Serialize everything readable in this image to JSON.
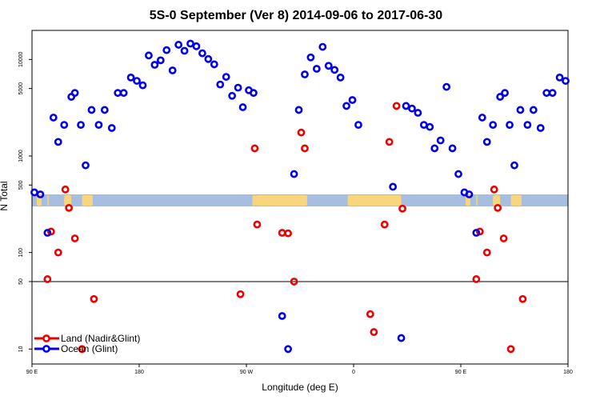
{
  "chart_data": {
    "type": "scatter",
    "title": "5S-0 September (Ver 8)   2014-09-06 to 2017-06-30",
    "xlabel": "Longitude (deg E)",
    "ylabel": "N Total",
    "x_ticks": [
      {
        "value": 90,
        "label": "90 E"
      },
      {
        "value": 180,
        "label": "180"
      },
      {
        "value": 270,
        "label": "90 W"
      },
      {
        "value": 360,
        "label": "0"
      },
      {
        "value": 450,
        "label": "90 E"
      },
      {
        "value": 540,
        "label": "180"
      }
    ],
    "y_ticks": [
      {
        "value": 10,
        "label": "10"
      },
      {
        "value": 50,
        "label": "50"
      },
      {
        "value": 100,
        "label": "100"
      },
      {
        "value": 500,
        "label": "500"
      },
      {
        "value": 1000,
        "label": "1000"
      },
      {
        "value": 5000,
        "label": "5000"
      },
      {
        "value": 10000,
        "label": "10000"
      }
    ],
    "xlim": [
      90,
      540
    ],
    "ylim_log": [
      7,
      20000
    ],
    "reference_line_y": 50,
    "map_strip_y_range": [
      300,
      400
    ],
    "legend": {
      "position": "bottom-left"
    },
    "series": [
      {
        "name": "Land (Nadir&Glint)",
        "color": "#ee0000",
        "points": [
          [
            103,
            53
          ],
          [
            106,
            165
          ],
          [
            112,
            100
          ],
          [
            118,
            450
          ],
          [
            121,
            290
          ],
          [
            126,
            140
          ],
          [
            132,
            10
          ],
          [
            142,
            33
          ],
          [
            265,
            37
          ],
          [
            277,
            1200
          ],
          [
            279,
            195
          ],
          [
            300,
            160
          ],
          [
            305,
            158
          ],
          [
            310,
            50
          ],
          [
            316,
            1750
          ],
          [
            319,
            1200
          ],
          [
            374,
            23
          ],
          [
            377,
            15
          ],
          [
            386,
            195
          ],
          [
            390,
            1400
          ],
          [
            396,
            3300
          ],
          [
            401,
            285
          ],
          [
            463,
            53
          ],
          [
            466,
            165
          ],
          [
            472,
            100
          ],
          [
            478,
            450
          ],
          [
            481,
            290
          ],
          [
            486,
            140
          ],
          [
            492,
            10
          ],
          [
            502,
            33
          ]
        ]
      },
      {
        "name": "Ocean (Glint)",
        "color": "#0000ee",
        "points": [
          [
            92,
            420
          ],
          [
            97,
            400
          ],
          [
            103,
            160
          ],
          [
            108,
            2500
          ],
          [
            112,
            1400
          ],
          [
            117,
            2100
          ],
          [
            123,
            4100
          ],
          [
            126,
            4500
          ],
          [
            131,
            2100
          ],
          [
            135,
            800
          ],
          [
            140,
            3000
          ],
          [
            146,
            2100
          ],
          [
            151,
            3000
          ],
          [
            157,
            1950
          ],
          [
            162,
            4500
          ],
          [
            167,
            4500
          ],
          [
            173,
            6500
          ],
          [
            178,
            6000
          ],
          [
            183,
            5400
          ],
          [
            188,
            11000
          ],
          [
            193,
            8800
          ],
          [
            198,
            9800
          ],
          [
            203,
            12500
          ],
          [
            208,
            7700
          ],
          [
            213,
            14200
          ],
          [
            218,
            12300
          ],
          [
            223,
            14600
          ],
          [
            228,
            13700
          ],
          [
            233,
            11600
          ],
          [
            238,
            10100
          ],
          [
            243,
            8900
          ],
          [
            248,
            5500
          ],
          [
            253,
            6600
          ],
          [
            258,
            4200
          ],
          [
            263,
            5100
          ],
          [
            267,
            3200
          ],
          [
            272,
            4800
          ],
          [
            276,
            4500
          ],
          [
            300,
            22
          ],
          [
            305,
            10
          ],
          [
            310,
            650
          ],
          [
            314,
            3000
          ],
          [
            319,
            7000
          ],
          [
            324,
            10500
          ],
          [
            329,
            8000
          ],
          [
            334,
            13500
          ],
          [
            339,
            8600
          ],
          [
            344,
            7800
          ],
          [
            349,
            6500
          ],
          [
            354,
            3300
          ],
          [
            359,
            3800
          ],
          [
            364,
            2100
          ],
          [
            393,
            480
          ],
          [
            400,
            13
          ],
          [
            404,
            3300
          ],
          [
            409,
            3100
          ],
          [
            414,
            2800
          ],
          [
            419,
            2100
          ],
          [
            424,
            2000
          ],
          [
            428,
            1200
          ],
          [
            433,
            1450
          ],
          [
            438,
            5200
          ],
          [
            443,
            1200
          ],
          [
            448,
            650
          ],
          [
            453,
            420
          ],
          [
            457,
            400
          ],
          [
            463,
            160
          ],
          [
            468,
            2500
          ],
          [
            472,
            1400
          ],
          [
            477,
            2100
          ],
          [
            483,
            4100
          ],
          [
            487,
            4500
          ],
          [
            491,
            2100
          ],
          [
            495,
            800
          ],
          [
            500,
            3000
          ],
          [
            506,
            2100
          ],
          [
            511,
            3000
          ],
          [
            517,
            1950
          ],
          [
            522,
            4500
          ],
          [
            527,
            4500
          ],
          [
            533,
            6500
          ],
          [
            538,
            6000
          ]
        ]
      }
    ],
    "map_colors": {
      "ocean": "#a6bedf",
      "land": "#f7d67d"
    },
    "map_land_spans": [
      {
        "start": 94,
        "end": 98
      },
      {
        "start": 103,
        "end": 104
      },
      {
        "start": 117,
        "end": 123
      },
      {
        "start": 132,
        "end": 141
      },
      {
        "start": 275,
        "end": 278
      },
      {
        "start": 278,
        "end": 304
      },
      {
        "start": 299,
        "end": 321
      },
      {
        "start": 355,
        "end": 363
      },
      {
        "start": 362,
        "end": 380
      },
      {
        "start": 381,
        "end": 386
      },
      {
        "start": 377,
        "end": 400
      },
      {
        "start": 454,
        "end": 458
      },
      {
        "start": 463,
        "end": 464
      },
      {
        "start": 477,
        "end": 483
      },
      {
        "start": 492,
        "end": 501
      }
    ]
  }
}
